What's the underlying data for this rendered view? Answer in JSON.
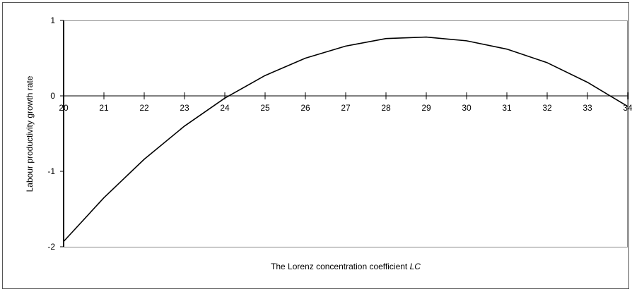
{
  "chart_data": {
    "type": "line",
    "x_label": {
      "text": "The Lorenz concentration coefficient",
      "italic": "LC"
    },
    "y_label": "Labour productivity growth rate",
    "x": [
      20,
      21,
      22,
      23,
      24,
      25,
      26,
      27,
      28,
      29,
      30,
      31,
      32,
      33,
      34
    ],
    "values": [
      -1.93,
      -1.35,
      -0.84,
      -0.4,
      -0.03,
      0.27,
      0.5,
      0.66,
      0.76,
      0.78,
      0.73,
      0.62,
      0.44,
      0.18,
      -0.14
    ],
    "color": "#000000",
    "xlim": [
      20,
      34
    ],
    "xticks": [
      20,
      21,
      22,
      23,
      24,
      25,
      26,
      27,
      28,
      29,
      30,
      31,
      32,
      33,
      34
    ],
    "ylim": [
      -2,
      1
    ],
    "yticks": [
      -2,
      -1,
      0,
      1
    ]
  }
}
